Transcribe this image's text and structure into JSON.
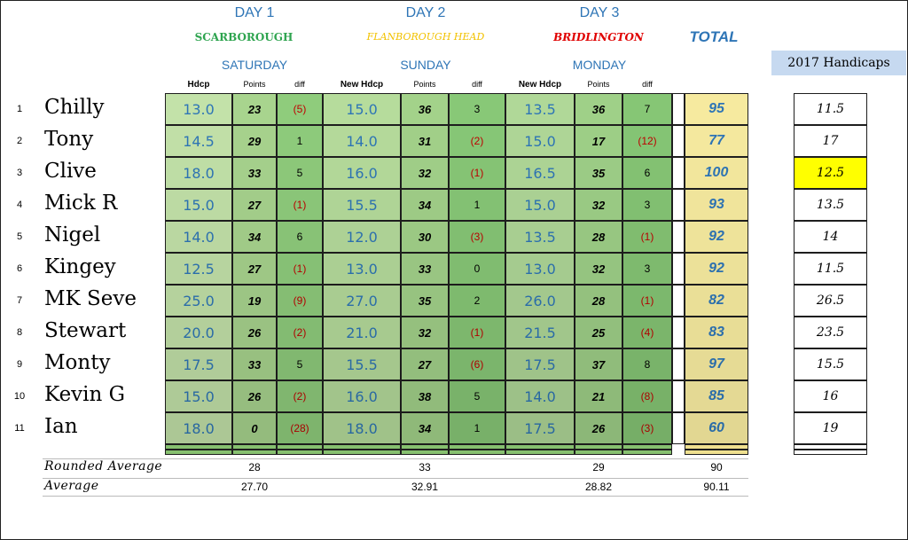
{
  "days": [
    {
      "day": "DAY 1",
      "venue": "SCARBOROUGH",
      "venue_color": "#2ea44f",
      "weekday": "SATURDAY"
    },
    {
      "day": "DAY 2",
      "venue": "FLANBOROUGH HEAD",
      "venue_color": "#f2c200",
      "weekday": "SUNDAY"
    },
    {
      "day": "DAY 3",
      "venue": "BRIDLINGTON",
      "venue_color": "#e00000",
      "weekday": "MONDAY"
    }
  ],
  "total_label": "TOTAL",
  "handicap_label": "2017 Handicaps",
  "col_headers": {
    "hdcp": "Hdcp",
    "new_hdcp": "New Hdcp",
    "points": "Points",
    "diff": "diff"
  },
  "players": [
    {
      "num": "1",
      "name": "Chilly",
      "d1": [
        "13.0",
        "23",
        "(5)"
      ],
      "d2": [
        "15.0",
        "36",
        "3"
      ],
      "d3": [
        "13.5",
        "36",
        "7"
      ],
      "total": "95",
      "hc": "11.5"
    },
    {
      "num": "2",
      "name": "Tony",
      "d1": [
        "14.5",
        "29",
        "1"
      ],
      "d2": [
        "14.0",
        "31",
        "(2)"
      ],
      "d3": [
        "15.0",
        "17",
        "(12)"
      ],
      "total": "77",
      "hc": "17"
    },
    {
      "num": "3",
      "name": "Clive",
      "d1": [
        "18.0",
        "33",
        "5"
      ],
      "d2": [
        "16.0",
        "32",
        "(1)"
      ],
      "d3": [
        "16.5",
        "35",
        "6"
      ],
      "total": "100",
      "hc": "12.5"
    },
    {
      "num": "4",
      "name": "Mick R",
      "d1": [
        "15.0",
        "27",
        "(1)"
      ],
      "d2": [
        "15.5",
        "34",
        "1"
      ],
      "d3": [
        "15.0",
        "32",
        "3"
      ],
      "total": "93",
      "hc": "13.5"
    },
    {
      "num": "5",
      "name": "Nigel",
      "d1": [
        "14.0",
        "34",
        "6"
      ],
      "d2": [
        "12.0",
        "30",
        "(3)"
      ],
      "d3": [
        "13.5",
        "28",
        "(1)"
      ],
      "total": "92",
      "hc": "14"
    },
    {
      "num": "6",
      "name": "Kingey",
      "d1": [
        "12.5",
        "27",
        "(1)"
      ],
      "d2": [
        "13.0",
        "33",
        "0"
      ],
      "d3": [
        "13.0",
        "32",
        "3"
      ],
      "total": "92",
      "hc": "11.5"
    },
    {
      "num": "7",
      "name": "MK Seve",
      "d1": [
        "25.0",
        "19",
        "(9)"
      ],
      "d2": [
        "27.0",
        "35",
        "2"
      ],
      "d3": [
        "26.0",
        "28",
        "(1)"
      ],
      "total": "82",
      "hc": "26.5"
    },
    {
      "num": "8",
      "name": "Stewart",
      "d1": [
        "20.0",
        "26",
        "(2)"
      ],
      "d2": [
        "21.0",
        "32",
        "(1)"
      ],
      "d3": [
        "21.5",
        "25",
        "(4)"
      ],
      "total": "83",
      "hc": "23.5"
    },
    {
      "num": "9",
      "name": "Monty",
      "d1": [
        "17.5",
        "33",
        "5"
      ],
      "d2": [
        "15.5",
        "27",
        "(6)"
      ],
      "d3": [
        "17.5",
        "37",
        "8"
      ],
      "total": "97",
      "hc": "15.5"
    },
    {
      "num": "10",
      "name": "Kevin G",
      "d1": [
        "15.0",
        "26",
        "(2)"
      ],
      "d2": [
        "16.0",
        "38",
        "5"
      ],
      "d3": [
        "14.0",
        "21",
        "(8)"
      ],
      "total": "85",
      "hc": "16"
    },
    {
      "num": "11",
      "name": "Ian",
      "d1": [
        "18.0",
        "0",
        "(28)"
      ],
      "d2": [
        "18.0",
        "34",
        "1"
      ],
      "d3": [
        "17.5",
        "26",
        "(3)"
      ],
      "total": "60",
      "hc": "19"
    }
  ],
  "highlight_hc_row": 3,
  "rounded_average": {
    "label": "Rounded Average",
    "d1": "28",
    "d2": "33",
    "d3": "29",
    "total": "90"
  },
  "average": {
    "label": "Average",
    "d1": "27.70",
    "d2": "32.91",
    "d3": "28.82",
    "total": "90.11"
  },
  "colors": {
    "hdcp_light": "#c3e2a9",
    "hdcp_mid": "#9fd08c",
    "total_yellow": "#f6ea9f",
    "highlight": "#ffff00",
    "header_blue": "#2e75b6",
    "neg": "#c00000"
  }
}
